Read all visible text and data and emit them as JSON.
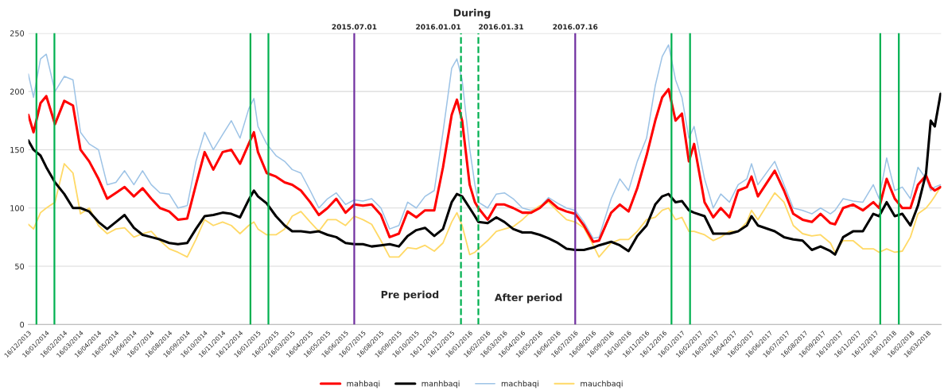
{
  "chart_data": {
    "type": "line",
    "title": "During",
    "x": [
      "2013-12-16",
      "2013-12-25",
      "2014-01-06",
      "2014-01-16",
      "2014-01-31",
      "2014-02-16",
      "2014-03-03",
      "2014-03-16",
      "2014-03-31",
      "2014-04-16",
      "2014-05-01",
      "2014-05-16",
      "2014-05-31",
      "2014-06-16",
      "2014-07-01",
      "2014-07-16",
      "2014-07-31",
      "2014-08-16",
      "2014-08-31",
      "2014-09-16",
      "2014-10-01",
      "2014-10-16",
      "2014-10-31",
      "2014-11-16",
      "2014-12-01",
      "2014-12-16",
      "2014-12-31",
      "2015-01-09",
      "2015-01-16",
      "2015-01-31",
      "2015-02-16",
      "2015-03-03",
      "2015-03-16",
      "2015-03-31",
      "2015-04-16",
      "2015-05-01",
      "2015-05-16",
      "2015-05-31",
      "2015-06-16",
      "2015-07-01",
      "2015-07-16",
      "2015-07-31",
      "2015-08-16",
      "2015-08-31",
      "2015-09-16",
      "2015-10-01",
      "2015-10-16",
      "2015-10-31",
      "2015-11-16",
      "2015-12-01",
      "2015-12-16",
      "2015-12-25",
      "2016-01-03",
      "2016-01-16",
      "2016-01-25",
      "2016-01-31",
      "2016-02-16",
      "2016-03-02",
      "2016-03-16",
      "2016-03-31",
      "2016-04-16",
      "2016-05-01",
      "2016-05-16",
      "2016-05-31",
      "2016-06-16",
      "2016-07-01",
      "2016-07-16",
      "2016-07-31",
      "2016-08-16",
      "2016-08-26",
      "2016-09-16",
      "2016-10-01",
      "2016-10-16",
      "2016-10-31",
      "2016-11-16",
      "2016-12-01",
      "2016-12-13",
      "2016-12-24",
      "2017-01-05",
      "2017-01-16",
      "2017-01-28",
      "2017-02-06",
      "2017-02-24",
      "2017-03-11",
      "2017-03-24",
      "2017-04-08",
      "2017-04-23",
      "2017-05-08",
      "2017-05-16",
      "2017-05-27",
      "2017-06-25",
      "2017-07-11",
      "2017-07-27",
      "2017-08-12",
      "2017-08-28",
      "2017-09-12",
      "2017-09-29",
      "2017-10-07",
      "2017-10-21",
      "2017-11-07",
      "2017-11-24",
      "2017-12-12",
      "2017-12-22",
      "2018-01-04",
      "2018-01-18",
      "2018-01-31",
      "2018-02-14",
      "2018-02-27",
      "2018-03-13",
      "2018-03-21",
      "2018-03-28",
      "2018-04-07"
    ],
    "series": [
      {
        "name": "mahbaqi",
        "color": "#ff0000",
        "values": [
          180,
          165,
          190,
          196,
          172,
          192,
          188,
          150,
          140,
          125,
          108,
          113,
          118,
          110,
          117,
          108,
          100,
          97,
          90,
          91,
          120,
          148,
          133,
          148,
          150,
          138,
          155,
          165,
          148,
          130,
          127,
          122,
          120,
          115,
          105,
          94,
          100,
          108,
          96,
          103,
          102,
          103,
          94,
          75,
          78,
          97,
          92,
          98,
          98,
          135,
          180,
          193,
          175,
          120,
          105,
          100,
          90,
          103,
          103,
          100,
          96,
          96,
          100,
          107,
          100,
          97,
          95,
          85,
          71,
          72,
          96,
          103,
          97,
          117,
          145,
          175,
          195,
          202,
          175,
          181,
          140,
          155,
          105,
          92,
          100,
          92,
          115,
          118,
          127,
          110,
          132,
          115,
          95,
          90,
          88,
          95,
          87,
          86,
          100,
          103,
          98,
          105,
          100,
          125,
          108,
          100,
          100,
          120,
          128,
          118,
          115,
          118
        ]
      },
      {
        "name": "manhbaqi",
        "color": "#000000",
        "values": [
          158,
          150,
          145,
          135,
          122,
          112,
          100,
          100,
          97,
          88,
          82,
          88,
          94,
          83,
          77,
          75,
          73,
          70,
          69,
          70,
          82,
          93,
          94,
          96,
          95,
          92,
          107,
          115,
          110,
          104,
          93,
          85,
          80,
          80,
          79,
          80,
          77,
          75,
          70,
          69,
          69,
          67,
          68,
          69,
          67,
          76,
          81,
          83,
          76,
          82,
          105,
          112,
          110,
          100,
          93,
          88,
          87,
          92,
          88,
          82,
          79,
          79,
          77,
          74,
          70,
          65,
          64,
          64,
          66,
          68,
          71,
          68,
          63,
          76,
          85,
          103,
          110,
          112,
          105,
          106,
          98,
          96,
          93,
          78,
          78,
          78,
          80,
          85,
          93,
          85,
          80,
          75,
          73,
          72,
          64,
          67,
          63,
          60,
          75,
          80,
          80,
          95,
          93,
          105,
          93,
          95,
          85,
          102,
          130,
          175,
          170,
          198
        ]
      },
      {
        "name": "machbaqi",
        "color": "#9dc3e6",
        "values": [
          215,
          195,
          228,
          232,
          200,
          213,
          210,
          165,
          155,
          150,
          120,
          122,
          132,
          120,
          132,
          120,
          113,
          112,
          100,
          102,
          140,
          165,
          150,
          163,
          175,
          160,
          185,
          194,
          170,
          155,
          145,
          140,
          133,
          130,
          115,
          100,
          108,
          113,
          103,
          107,
          106,
          108,
          100,
          82,
          85,
          105,
          100,
          110,
          115,
          165,
          220,
          228,
          210,
          151,
          120,
          105,
          100,
          112,
          113,
          108,
          100,
          98,
          101,
          109,
          104,
          100,
          98,
          88,
          74,
          75,
          108,
          125,
          115,
          140,
          160,
          205,
          230,
          240,
          210,
          195,
          160,
          170,
          125,
          100,
          112,
          105,
          120,
          125,
          138,
          120,
          140,
          120,
          100,
          98,
          95,
          100,
          95,
          98,
          108,
          106,
          105,
          120,
          108,
          143,
          115,
          118,
          108,
          135,
          125,
          115,
          118,
          120
        ]
      },
      {
        "name": "mauchbaqi",
        "color": "#ffd966",
        "values": [
          86,
          82,
          96,
          100,
          105,
          138,
          130,
          95,
          100,
          85,
          78,
          82,
          83,
          75,
          78,
          80,
          72,
          65,
          62,
          58,
          73,
          90,
          85,
          88,
          85,
          78,
          85,
          88,
          82,
          77,
          77,
          82,
          93,
          97,
          88,
          80,
          90,
          90,
          85,
          93,
          90,
          86,
          72,
          58,
          58,
          66,
          65,
          68,
          63,
          70,
          88,
          96,
          85,
          60,
          62,
          65,
          72,
          80,
          82,
          84,
          90,
          97,
          102,
          105,
          97,
          90,
          88,
          83,
          68,
          58,
          70,
          73,
          73,
          80,
          90,
          92,
          98,
          100,
          90,
          92,
          80,
          80,
          77,
          72,
          75,
          80,
          80,
          88,
          98,
          90,
          113,
          105,
          85,
          78,
          76,
          77,
          70,
          62,
          72,
          72,
          65,
          65,
          62,
          65,
          62,
          63,
          75,
          95,
          100,
          105,
          110,
          118
        ]
      }
    ],
    "xlim": [
      "2013-12-16",
      "2018-04-08"
    ],
    "xticks": [
      {
        "value": "2013-12-16",
        "label": "16/12/2013"
      },
      {
        "value": "2014-01-16",
        "label": "16/01/2014"
      },
      {
        "value": "2014-02-16",
        "label": "16/02/2014"
      },
      {
        "value": "2014-03-16",
        "label": "16/03/2014"
      },
      {
        "value": "2014-04-16",
        "label": "16/04/2014"
      },
      {
        "value": "2014-05-16",
        "label": "16/05/2014"
      },
      {
        "value": "2014-06-16",
        "label": "16/06/2014"
      },
      {
        "value": "2014-07-16",
        "label": "16/07/2014"
      },
      {
        "value": "2014-08-16",
        "label": "16/08/2014"
      },
      {
        "value": "2014-09-16",
        "label": "16/09/2014"
      },
      {
        "value": "2014-10-16",
        "label": "16/10/2014"
      },
      {
        "value": "2014-11-16",
        "label": "16/11/2014"
      },
      {
        "value": "2014-12-16",
        "label": "16/12/2014"
      },
      {
        "value": "2015-01-16",
        "label": "16/01/2015"
      },
      {
        "value": "2015-02-16",
        "label": "16/02/2015"
      },
      {
        "value": "2015-03-16",
        "label": "16/03/2015"
      },
      {
        "value": "2015-04-16",
        "label": "16/04/2015"
      },
      {
        "value": "2015-05-16",
        "label": "16/05/2015"
      },
      {
        "value": "2015-06-16",
        "label": "16/06/2015"
      },
      {
        "value": "2015-07-16",
        "label": "16/07/2015"
      },
      {
        "value": "2015-08-16",
        "label": "16/08/2015"
      },
      {
        "value": "2015-09-16",
        "label": "16/09/2015"
      },
      {
        "value": "2015-10-16",
        "label": "16/10/2015"
      },
      {
        "value": "2015-11-16",
        "label": "16/11/2015"
      },
      {
        "value": "2015-12-16",
        "label": "16/12/2015"
      },
      {
        "value": "2016-01-16",
        "label": "16/01/2016"
      },
      {
        "value": "2016-02-16",
        "label": "16/02/2016"
      },
      {
        "value": "2016-03-16",
        "label": "16/03/2016"
      },
      {
        "value": "2016-04-16",
        "label": "16/04/2016"
      },
      {
        "value": "2016-05-16",
        "label": "16/05/2016"
      },
      {
        "value": "2016-06-16",
        "label": "16/06/2016"
      },
      {
        "value": "2016-07-16",
        "label": "16/07/2016"
      },
      {
        "value": "2016-08-16",
        "label": "16/08/2016"
      },
      {
        "value": "2016-09-16",
        "label": "16/09/2016"
      },
      {
        "value": "2016-10-16",
        "label": "16/10/2016"
      },
      {
        "value": "2016-11-16",
        "label": "16/11/2016"
      },
      {
        "value": "2016-12-16",
        "label": "16/12/2016"
      },
      {
        "value": "2017-01-16",
        "label": "16/01/2017"
      },
      {
        "value": "2017-02-16",
        "label": "16/02/2017"
      },
      {
        "value": "2017-03-16",
        "label": "16/03/2017"
      },
      {
        "value": "2017-04-16",
        "label": "16/04/2017"
      },
      {
        "value": "2017-05-16",
        "label": "16/05/2017"
      },
      {
        "value": "2017-06-16",
        "label": "16/06/2017"
      },
      {
        "value": "2017-07-16",
        "label": "16/07/2017"
      },
      {
        "value": "2017-08-16",
        "label": "16/08/2017"
      },
      {
        "value": "2017-09-16",
        "label": "16/09/2017"
      },
      {
        "value": "2017-10-16",
        "label": "16/10/2017"
      },
      {
        "value": "2017-11-16",
        "label": "16/11/2017"
      },
      {
        "value": "2017-12-16",
        "label": "16/12/2017"
      },
      {
        "value": "2018-01-16",
        "label": "16/01/2018"
      },
      {
        "value": "2018-02-16",
        "label": "16/02/2018"
      },
      {
        "value": "2018-03-16",
        "label": "16/03/2018"
      }
    ],
    "ylim": [
      0,
      250
    ],
    "yticks": [
      0,
      50,
      100,
      150,
      200,
      250
    ],
    "ref_lines": [
      {
        "axis": "x",
        "value": "2013-12-30",
        "label": null,
        "color": "#00b050",
        "line_style": "solid"
      },
      {
        "axis": "x",
        "value": "2014-01-30",
        "label": null,
        "color": "#00b050",
        "line_style": "solid"
      },
      {
        "axis": "x",
        "value": "2015-01-03",
        "label": null,
        "color": "#00b050",
        "line_style": "solid"
      },
      {
        "axis": "x",
        "value": "2015-02-03",
        "label": null,
        "color": "#00b050",
        "line_style": "solid"
      },
      {
        "axis": "x",
        "value": "2015-07-01",
        "label": "2015.07.01",
        "color": "#7030a0",
        "line_style": "solid"
      },
      {
        "axis": "x",
        "value": "2016-01-01",
        "label": "2016.01.01",
        "color": "#00b050",
        "line_style": "dashed"
      },
      {
        "axis": "x",
        "value": "2016-01-31",
        "label": "2016.01.31",
        "color": "#00b050",
        "line_style": "dashed"
      },
      {
        "axis": "x",
        "value": "2016-07-16",
        "label": "2016.07.16",
        "color": "#7030a0",
        "line_style": "solid"
      },
      {
        "axis": "x",
        "value": "2016-12-29",
        "label": null,
        "color": "#00b050",
        "line_style": "solid"
      },
      {
        "axis": "x",
        "value": "2017-01-30",
        "label": null,
        "color": "#00b050",
        "line_style": "solid"
      },
      {
        "axis": "x",
        "value": "2017-12-24",
        "label": null,
        "color": "#00b050",
        "line_style": "solid"
      },
      {
        "axis": "x",
        "value": "2018-01-25",
        "label": null,
        "color": "#00b050",
        "line_style": "solid"
      }
    ],
    "annotations": [
      "Pre period",
      "After period"
    ],
    "grid": "y",
    "legend": "bottom",
    "marker": "none",
    "line_style": "solid"
  }
}
